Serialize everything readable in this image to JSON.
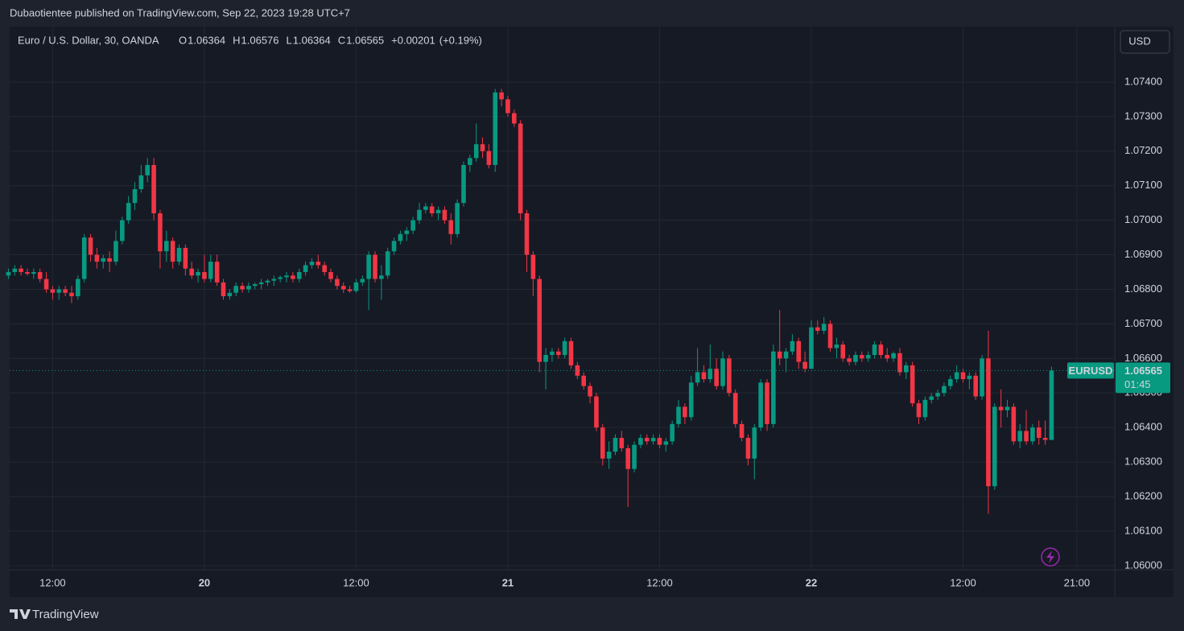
{
  "publisher": "Dubaotientee published on TradingView.com, Sep 22, 2023 19:28 UTC+7",
  "brand": "TradingView",
  "chart_data": {
    "type": "candlestick",
    "symbol": "Euro / U.S. Dollar, 30, OANDA",
    "ohlc_labels": [
      "O",
      "H",
      "L",
      "C"
    ],
    "ohlc_values": [
      1.06364,
      1.06576,
      1.06364,
      1.06565
    ],
    "change": "+0.00201",
    "change_percent": "(+0.19%)",
    "currency": "USD",
    "price_tag": "EURUSD",
    "countdown": "01:45",
    "up_color": "#089981",
    "down_color": "#f23645",
    "grid": true,
    "x": [
      8.5,
      9,
      9.5,
      10,
      10.5,
      11,
      11.5,
      12,
      12.5,
      13,
      13.5,
      14,
      14.5,
      15,
      15.5,
      16,
      16.5,
      17,
      17.5,
      18,
      18.5,
      19,
      19.5,
      20,
      20.5,
      21,
      21.5,
      22,
      22.5,
      23,
      23.5,
      24,
      24.5,
      25,
      25.5,
      26,
      26.5,
      27,
      27.5,
      28,
      28.5,
      29,
      29.5,
      30,
      30.5,
      31,
      31.5,
      32,
      32.5,
      33,
      33.5,
      34,
      34.5,
      35,
      35.5,
      36,
      36.5,
      37,
      37.5,
      38,
      38.5,
      39,
      39.5,
      40,
      40.5,
      41,
      41.5,
      42,
      42.5,
      43,
      43.5,
      44,
      44.5,
      45,
      45.5,
      46,
      46.5,
      47,
      47.5,
      48,
      48.5,
      49,
      49.5,
      50,
      50.5,
      51,
      51.5,
      52,
      52.5,
      53,
      53.5,
      54,
      54.5,
      55,
      55.5,
      56,
      56.5,
      57,
      57.5,
      58,
      58.5,
      59,
      59.5,
      60,
      60.5,
      61,
      61.5,
      62,
      62.5,
      63,
      63.5,
      64,
      64.5,
      65,
      65.5,
      66,
      66.5,
      67,
      67.5,
      68,
      68.5,
      69,
      69.5,
      70,
      70.5,
      71,
      71.5,
      72,
      72.5,
      73,
      73.5,
      74,
      74.5,
      75,
      75.5,
      76,
      76.5,
      77,
      77.5,
      78,
      78.5,
      79,
      79.5,
      80,
      80.5,
      81,
      81.5,
      82,
      82.5,
      83,
      83.5,
      84,
      84.5,
      85,
      85.5,
      86,
      86.5,
      87,
      87.5,
      88,
      88.5,
      89,
      89.5,
      90,
      90.5,
      91
    ],
    "open": [
      1.0684,
      1.0685,
      1.0686,
      1.0685,
      1.06845,
      1.0685,
      1.0683,
      1.068,
      1.0679,
      1.068,
      1.0679,
      1.0678,
      1.0683,
      1.0695,
      1.069,
      1.0688,
      1.0689,
      1.0688,
      1.0694,
      1.07,
      1.0705,
      1.0709,
      1.0713,
      1.0716,
      1.0702,
      1.0691,
      1.0694,
      1.0688,
      1.0692,
      1.0686,
      1.0684,
      1.0685,
      1.0683,
      1.0688,
      1.0682,
      1.0678,
      1.0679,
      1.0681,
      1.068,
      1.0681,
      1.06815,
      1.0682,
      1.06825,
      1.0683,
      1.06835,
      1.0684,
      1.0683,
      1.0685,
      1.0687,
      1.0688,
      1.0687,
      1.0685,
      1.0683,
      1.0681,
      1.068,
      1.06795,
      1.0682,
      1.0683,
      1.069,
      1.0683,
      1.0684,
      1.0691,
      1.0694,
      1.0696,
      1.0697,
      1.07,
      1.0703,
      1.0704,
      1.0702,
      1.0703,
      1.07,
      1.0696,
      1.0705,
      1.0716,
      1.0718,
      1.0722,
      1.072,
      1.0716,
      1.0737,
      1.0735,
      1.0731,
      1.0728,
      1.0702,
      1.069,
      1.0683,
      1.0659,
      1.0661,
      1.0662,
      1.0661,
      1.0665,
      1.0658,
      1.0655,
      1.0652,
      1.0649,
      1.064,
      1.0631,
      1.0633,
      1.0637,
      1.0634,
      1.0628,
      1.0635,
      1.0637,
      1.0636,
      1.0637,
      1.0635,
      1.0636,
      1.0641,
      1.0646,
      1.0643,
      1.0653,
      1.0656,
      1.0654,
      1.0657,
      1.0652,
      1.066,
      1.065,
      1.0641,
      1.0637,
      1.0631,
      1.064,
      1.0653,
      1.0641,
      1.0662,
      1.066,
      1.0662,
      1.0665,
      1.0659,
      1.0657,
      1.0669,
      1.0668,
      1.067,
      1.0663,
      1.0664,
      1.066,
      1.0659,
      1.0661,
      1.066,
      1.0661,
      1.0664,
      1.0661,
      1.066,
      1.06615,
      1.0656,
      1.0658,
      1.0647,
      1.0643,
      1.0648,
      1.0649,
      1.065,
      1.0652,
      1.0654,
      1.0656,
      1.0654,
      1.0655,
      1.0649,
      1.066,
      1.0623,
      1.0646,
      1.0645,
      1.0646,
      1.0636,
      1.0639,
      1.0636,
      1.064,
      1.0637,
      1.06364
    ],
    "high": [
      1.0686,
      1.0687,
      1.0687,
      1.0686,
      1.0686,
      1.0686,
      1.0685,
      1.0681,
      1.0681,
      1.0681,
      1.0681,
      1.0684,
      1.0696,
      1.0696,
      1.0692,
      1.069,
      1.0691,
      1.0697,
      1.0701,
      1.0707,
      1.0711,
      1.0716,
      1.0718,
      1.0718,
      1.0703,
      1.0697,
      1.0695,
      1.0693,
      1.0693,
      1.0688,
      1.0686,
      1.069,
      1.069,
      1.069,
      1.0683,
      1.068,
      1.0682,
      1.0682,
      1.0682,
      1.0682,
      1.0683,
      1.0683,
      1.0684,
      1.0684,
      1.0685,
      1.0685,
      1.0686,
      1.0688,
      1.0689,
      1.069,
      1.0688,
      1.0686,
      1.0684,
      1.0682,
      1.0681,
      1.0683,
      1.0684,
      1.0691,
      1.0691,
      1.0687,
      1.0692,
      1.0695,
      1.0697,
      1.0698,
      1.0701,
      1.0705,
      1.0705,
      1.0705,
      1.0704,
      1.0704,
      1.0702,
      1.0706,
      1.0717,
      1.0719,
      1.0728,
      1.0724,
      1.0722,
      1.0738,
      1.0738,
      1.0736,
      1.0732,
      1.0729,
      1.0703,
      1.0691,
      1.0684,
      1.0663,
      1.0663,
      1.0663,
      1.0666,
      1.0666,
      1.0659,
      1.0656,
      1.0653,
      1.065,
      1.0641,
      1.0636,
      1.0638,
      1.0639,
      1.0635,
      1.0636,
      1.0638,
      1.0638,
      1.0638,
      1.0638,
      1.0637,
      1.0642,
      1.0648,
      1.0647,
      1.0655,
      1.0663,
      1.0658,
      1.0664,
      1.066,
      1.0662,
      1.0661,
      1.0651,
      1.0642,
      1.0638,
      1.0641,
      1.0654,
      1.0654,
      1.0664,
      1.0674,
      1.0663,
      1.0667,
      1.0666,
      1.0662,
      1.0671,
      1.0671,
      1.0672,
      1.0671,
      1.0666,
      1.0665,
      1.0661,
      1.0662,
      1.0662,
      1.0662,
      1.0665,
      1.0665,
      1.0663,
      1.0662,
      1.0663,
      1.0659,
      1.0659,
      1.0648,
      1.0649,
      1.065,
      1.0651,
      1.0653,
      1.0655,
      1.0658,
      1.0657,
      1.0656,
      1.0656,
      1.0661,
      1.0668,
      1.0647,
      1.0651,
      1.0648,
      1.0647,
      1.0641,
      1.0645,
      1.0641,
      1.0642,
      1.0642,
      1.06576
    ],
    "low": [
      1.0683,
      1.0684,
      1.0684,
      1.0684,
      1.0683,
      1.0682,
      1.0679,
      1.0677,
      1.0677,
      1.0678,
      1.0676,
      1.0677,
      1.0682,
      1.0688,
      1.0686,
      1.0686,
      1.0685,
      1.0687,
      1.0693,
      1.0699,
      1.0703,
      1.0708,
      1.0711,
      1.07,
      1.0686,
      1.0688,
      1.0686,
      1.0687,
      1.0684,
      1.0683,
      1.0682,
      1.0682,
      1.0682,
      1.0681,
      1.0677,
      1.0677,
      1.0678,
      1.0679,
      1.0679,
      1.068,
      1.068,
      1.0681,
      1.0681,
      1.0682,
      1.0682,
      1.0682,
      1.0682,
      1.0684,
      1.0686,
      1.0686,
      1.0684,
      1.0682,
      1.068,
      1.0679,
      1.0679,
      1.0679,
      1.0681,
      1.0674,
      1.0682,
      1.0677,
      1.0683,
      1.069,
      1.0693,
      1.0694,
      1.0696,
      1.0699,
      1.0702,
      1.0701,
      1.07,
      1.0699,
      1.0693,
      1.0695,
      1.0704,
      1.0714,
      1.0717,
      1.0718,
      1.0715,
      1.0714,
      1.0733,
      1.073,
      1.0727,
      1.07,
      1.0685,
      1.0678,
      1.0656,
      1.0651,
      1.0659,
      1.066,
      1.066,
      1.0657,
      1.0654,
      1.0651,
      1.0647,
      1.0639,
      1.0629,
      1.0628,
      1.0632,
      1.0633,
      1.0617,
      1.0627,
      1.0634,
      1.0635,
      1.0635,
      1.0634,
      1.0633,
      1.0635,
      1.064,
      1.0641,
      1.0642,
      1.0652,
      1.0653,
      1.0653,
      1.0651,
      1.0651,
      1.0649,
      1.064,
      1.0636,
      1.0629,
      1.0625,
      1.0639,
      1.0639,
      1.064,
      1.0658,
      1.0656,
      1.0661,
      1.0657,
      1.0656,
      1.0657,
      1.0667,
      1.0667,
      1.0662,
      1.066,
      1.0659,
      1.0658,
      1.0658,
      1.0659,
      1.0659,
      1.066,
      1.066,
      1.0659,
      1.0659,
      1.0655,
      1.0654,
      1.0646,
      1.0641,
      1.0642,
      1.0647,
      1.0648,
      1.0649,
      1.0651,
      1.0653,
      1.0653,
      1.0651,
      1.0648,
      1.0648,
      1.0615,
      1.0622,
      1.064,
      1.0643,
      1.0635,
      1.0634,
      1.0635,
      1.0635,
      1.0635,
      1.0635,
      1.06364
    ],
    "close": [
      1.0685,
      1.0686,
      1.0685,
      1.06845,
      1.0685,
      1.0683,
      1.068,
      1.0679,
      1.068,
      1.0679,
      1.0678,
      1.0683,
      1.0695,
      1.069,
      1.0688,
      1.0689,
      1.0688,
      1.0694,
      1.07,
      1.0705,
      1.0709,
      1.0713,
      1.0716,
      1.0702,
      1.0691,
      1.0694,
      1.0688,
      1.0692,
      1.0686,
      1.0684,
      1.0685,
      1.0683,
      1.0688,
      1.0682,
      1.0678,
      1.0679,
      1.0681,
      1.068,
      1.0681,
      1.06815,
      1.0682,
      1.06825,
      1.0683,
      1.06835,
      1.0684,
      1.0683,
      1.0685,
      1.0687,
      1.0688,
      1.0687,
      1.0685,
      1.0683,
      1.0681,
      1.068,
      1.06795,
      1.0682,
      1.0683,
      1.069,
      1.0683,
      1.0684,
      1.0691,
      1.0694,
      1.0696,
      1.0697,
      1.07,
      1.0703,
      1.0704,
      1.0702,
      1.0703,
      1.07,
      1.0696,
      1.0705,
      1.0716,
      1.0718,
      1.0722,
      1.072,
      1.0716,
      1.0737,
      1.0735,
      1.0731,
      1.0728,
      1.0702,
      1.069,
      1.0683,
      1.0659,
      1.0661,
      1.0662,
      1.0661,
      1.0665,
      1.0658,
      1.0655,
      1.0652,
      1.0649,
      1.064,
      1.0631,
      1.0633,
      1.0637,
      1.0634,
      1.0628,
      1.0635,
      1.0637,
      1.0636,
      1.0637,
      1.0635,
      1.0636,
      1.0641,
      1.0646,
      1.0643,
      1.0653,
      1.0656,
      1.0654,
      1.0657,
      1.0652,
      1.066,
      1.065,
      1.0641,
      1.0637,
      1.0631,
      1.064,
      1.0653,
      1.0641,
      1.0662,
      1.066,
      1.0662,
      1.0665,
      1.0659,
      1.0657,
      1.0669,
      1.0668,
      1.067,
      1.0663,
      1.0664,
      1.066,
      1.0659,
      1.0661,
      1.066,
      1.0661,
      1.0664,
      1.0661,
      1.066,
      1.06615,
      1.0656,
      1.0658,
      1.0647,
      1.0643,
      1.0648,
      1.0649,
      1.065,
      1.0652,
      1.0654,
      1.0656,
      1.0654,
      1.0655,
      1.0649,
      1.066,
      1.0623,
      1.0646,
      1.0645,
      1.0646,
      1.0636,
      1.0639,
      1.0636,
      1.064,
      1.0637,
      1.06364,
      1.06565
    ],
    "xlim": [
      8.6,
      96
    ],
    "xticks": [
      {
        "value": 12,
        "label": "12:00"
      },
      {
        "value": 24,
        "label": "20"
      },
      {
        "value": 36,
        "label": "12:00"
      },
      {
        "value": 48,
        "label": "21"
      },
      {
        "value": 60,
        "label": "12:00"
      },
      {
        "value": 72,
        "label": "22"
      },
      {
        "value": 84,
        "label": "12:00"
      },
      {
        "value": 93,
        "label": "21:00"
      }
    ],
    "ylim": [
      1.05988,
      1.07556
    ],
    "yticks": [
      {
        "value": 1.06,
        "label": "1.06000"
      },
      {
        "value": 1.061,
        "label": "1.06100"
      },
      {
        "value": 1.062,
        "label": "1.06200"
      },
      {
        "value": 1.063,
        "label": "1.06300"
      },
      {
        "value": 1.064,
        "label": "1.06400"
      },
      {
        "value": 1.065,
        "label": "1.06500"
      },
      {
        "value": 1.066,
        "label": "1.06600"
      },
      {
        "value": 1.067,
        "label": "1.06700"
      },
      {
        "value": 1.068,
        "label": "1.06800"
      },
      {
        "value": 1.069,
        "label": "1.06900"
      },
      {
        "value": 1.07,
        "label": "1.07000"
      },
      {
        "value": 1.071,
        "label": "1.07100"
      },
      {
        "value": 1.072,
        "label": "1.07200"
      },
      {
        "value": 1.073,
        "label": "1.07300"
      },
      {
        "value": 1.074,
        "label": "1.07400"
      }
    ]
  }
}
